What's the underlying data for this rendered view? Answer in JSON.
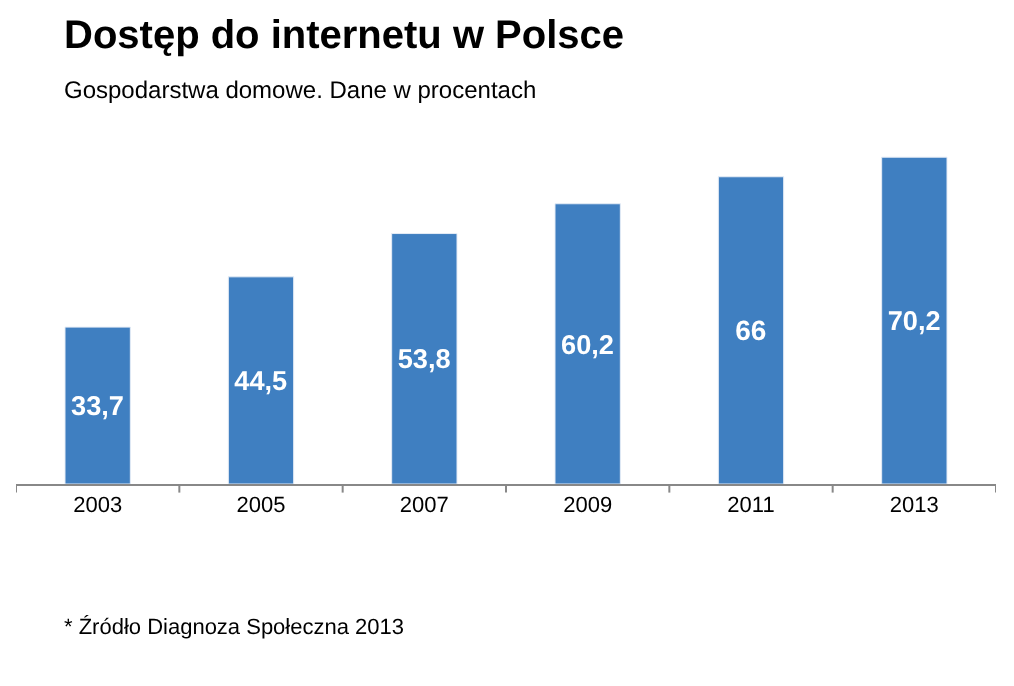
{
  "chart_data": {
    "type": "bar",
    "title": "Dostęp do internetu w Polsce",
    "subtitle": "Gospodarstwa domowe. Dane w procentach",
    "categories": [
      "2003",
      "2005",
      "2007",
      "2009",
      "2011",
      "2013"
    ],
    "series": [
      {
        "color": "#3f7fc1",
        "values": [
          33.7,
          44.5,
          53.8,
          60.2,
          66,
          70.2
        ],
        "value_labels": [
          "33,7",
          "44,5",
          "53,8",
          "60,2",
          "66",
          "70,2"
        ]
      }
    ],
    "annotations": [
      "* Źródło Diagnoza Społeczna 2013"
    ],
    "legend": false
  }
}
